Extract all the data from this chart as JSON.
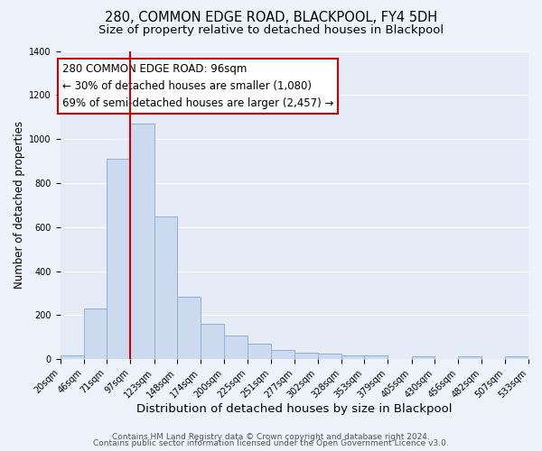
{
  "title": "280, COMMON EDGE ROAD, BLACKPOOL, FY4 5DH",
  "subtitle": "Size of property relative to detached houses in Blackpool",
  "xlabel": "Distribution of detached houses by size in Blackpool",
  "ylabel": "Number of detached properties",
  "bar_edges": [
    20,
    46,
    71,
    97,
    123,
    148,
    174,
    200,
    225,
    251,
    277,
    302,
    328,
    353,
    379,
    405,
    430,
    456,
    482,
    507,
    533
  ],
  "bar_heights": [
    15,
    230,
    910,
    1070,
    650,
    285,
    160,
    108,
    70,
    40,
    28,
    25,
    18,
    16,
    0,
    12,
    0,
    12,
    0,
    12
  ],
  "bar_color": "#ccdaf0",
  "bar_edge_color": "#92afd0",
  "vline_x": 97,
  "vline_color": "#cc0000",
  "annotation_box_edge_color": "#cc0000",
  "annotation_text_line1": "280 COMMON EDGE ROAD: 96sqm",
  "annotation_text_line2": "← 30% of detached houses are smaller (1,080)",
  "annotation_text_line3": "69% of semi-detached houses are larger (2,457) →",
  "annotation_fontsize": 8.5,
  "ylim": [
    0,
    1400
  ],
  "yticks": [
    0,
    200,
    400,
    600,
    800,
    1000,
    1200,
    1400
  ],
  "footer_line1": "Contains HM Land Registry data © Crown copyright and database right 2024.",
  "footer_line2": "Contains public sector information licensed under the Open Government Licence v3.0.",
  "background_color": "#eef2fa",
  "plot_background_color": "#e5ecf8",
  "grid_color": "#ffffff",
  "title_fontsize": 10.5,
  "subtitle_fontsize": 9.5,
  "xlabel_fontsize": 9.5,
  "ylabel_fontsize": 8.5,
  "tick_label_fontsize": 7,
  "footer_fontsize": 6.5
}
